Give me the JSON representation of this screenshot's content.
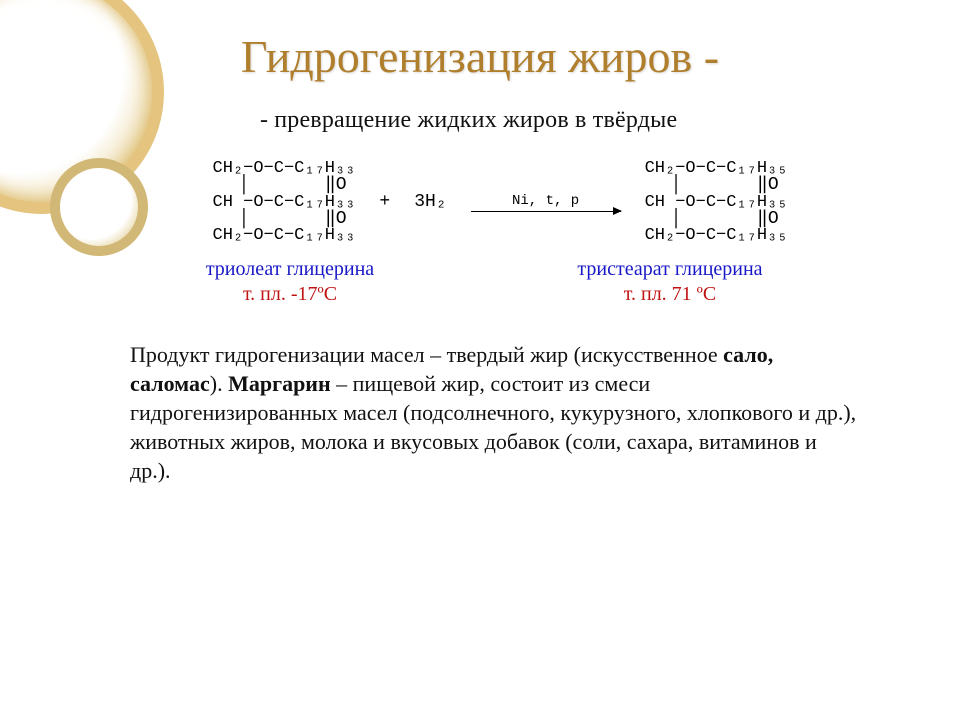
{
  "title": "Гидрогенизация жиров -",
  "subtitle_dash": "-",
  "subtitle": "превращение жидких жиров в твёрдые",
  "reaction": {
    "left_tail": "C₁₇H₃₃",
    "right_tail": "C₁₇H₃₅",
    "h2": "3H₂",
    "plus": "+",
    "cond": "Ni, t, p"
  },
  "labels": {
    "left_name": "триолеат глицерина",
    "left_mp": "т. пл. -17ºС",
    "right_name": "тристеарат глицерина",
    "right_mp": "т. пл. 71 ºС"
  },
  "paragraph": {
    "p1a": "Продукт гидрогенизации масел – твердый жир (искусственное ",
    "p1b": "сало, саломас",
    "p1c": "). ",
    "p1d": "Маргарин",
    "p1e": " – пищевой жир, состоит из смеси гидрогенизированных масел (подсолнечного, кукурузного, хлопкового и др.), животных жиров, молока и вкусовых добавок (соли, сахара, витаминов и др.)."
  },
  "colors": {
    "title": "#b07f2e",
    "name": "#1818c8",
    "mp": "#c01414",
    "ring_border": "#e4c47f"
  }
}
